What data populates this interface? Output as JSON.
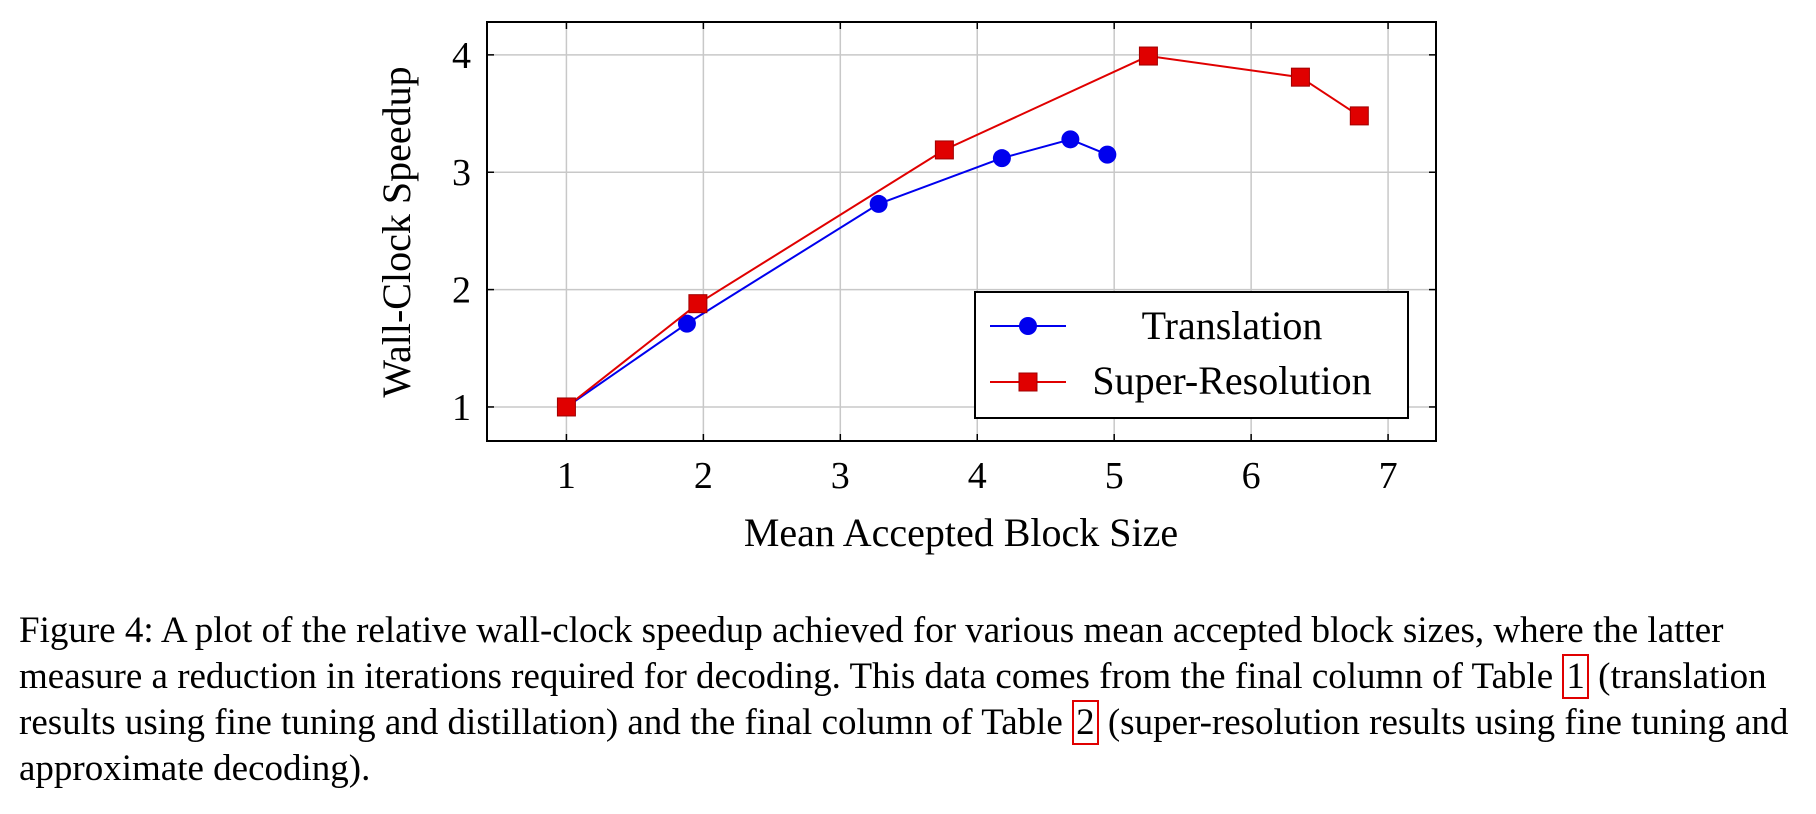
{
  "chart_data": {
    "type": "line",
    "xlabel": "Mean Accepted Block Size",
    "ylabel": "Wall-Clock Speedup",
    "xlim": [
      0.42,
      7.35
    ],
    "ylim": [
      0.71,
      4.28
    ],
    "xticks": [
      1,
      2,
      3,
      4,
      5,
      6,
      7
    ],
    "yticks": [
      1,
      2,
      3,
      4
    ],
    "grid": true,
    "legend_position": "bottom-right",
    "series": [
      {
        "name": "Translation",
        "color": "#0000ee",
        "marker": "circle",
        "x": [
          1.0,
          1.88,
          3.28,
          4.18,
          4.68,
          4.95
        ],
        "y": [
          1.0,
          1.71,
          2.73,
          3.12,
          3.28,
          3.15
        ]
      },
      {
        "name": "Super-Resolution",
        "color": "#e00000",
        "marker": "square",
        "x": [
          1.0,
          1.96,
          3.76,
          5.25,
          6.36,
          6.79
        ],
        "y": [
          1.0,
          1.88,
          3.19,
          3.99,
          3.81,
          3.48
        ]
      }
    ]
  },
  "caption": {
    "prefix": "Figure 4: A plot of the relative wall-clock speedup achieved for various mean accepted block sizes, where the latter measure a reduction in iterations required for decoding. This data comes from the final column of Table ",
    "ref1": "1",
    "middle": " (translation results using fine tuning and distillation) and the final column of Table ",
    "ref2": "2",
    "suffix": " (super-resolution results using fine tuning and approximate decoding)."
  }
}
